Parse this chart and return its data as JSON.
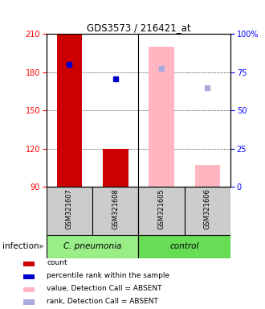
{
  "title": "GDS3573 / 216421_at",
  "samples": [
    "GSM321607",
    "GSM321608",
    "GSM321605",
    "GSM321606"
  ],
  "ylim": [
    90,
    210
  ],
  "yticks": [
    90,
    120,
    150,
    180,
    210
  ],
  "y_right_ticks": [
    0,
    25,
    50,
    75,
    100
  ],
  "y_right_tick_pos": [
    90,
    120,
    150,
    180,
    210
  ],
  "bar_bottom": 90,
  "count_color": "#CC0000",
  "rank_color": "#0000CC",
  "absent_value_color": "#FFB6C1",
  "absent_rank_color": "#AAAADD",
  "count_values": [
    210,
    120,
    null,
    null
  ],
  "rank_values": [
    186,
    175,
    null,
    null
  ],
  "absent_value_values": [
    null,
    null,
    200,
    107
  ],
  "absent_rank_values": [
    null,
    null,
    183,
    168
  ],
  "bar_width": 0.55,
  "group_spans": [
    {
      "label": "C. pneumonia",
      "start": 0,
      "end": 1,
      "color": "#99EE88"
    },
    {
      "label": "control",
      "start": 2,
      "end": 3,
      "color": "#66DD55"
    }
  ],
  "sample_box_color": "#CCCCCC",
  "legend_items": [
    {
      "color": "#CC0000",
      "label": "count"
    },
    {
      "color": "#0000CC",
      "label": "percentile rank within the sample"
    },
    {
      "color": "#FFB6C1",
      "label": "value, Detection Call = ABSENT"
    },
    {
      "color": "#AAAADD",
      "label": "rank, Detection Call = ABSENT"
    }
  ],
  "infection_label": "infection"
}
